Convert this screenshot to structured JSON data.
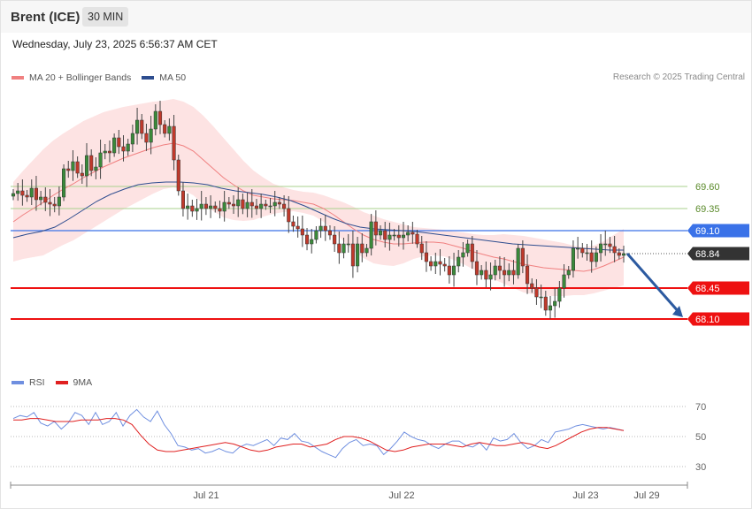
{
  "header": {
    "symbol": "Brent (ICE)",
    "timeframe": "30 MIN",
    "datetime": "Wednesday, July 23, 2025 6:56:37 AM CET"
  },
  "legend": {
    "ma20_label": "MA 20 + Bollinger Bands",
    "ma50_label": "MA 50",
    "rsi_label": "RSI",
    "ma9_label": "9MA",
    "credit": "Research © 2025 Trading Central"
  },
  "colors": {
    "ma20": "#f08080",
    "ma50": "#2e4d8f",
    "bands_fill": "#fde3e3",
    "bull": "#3a8a3a",
    "bear": "#c0392b",
    "rsi": "#6f8fe0",
    "rsi_ma": "#e02020",
    "support": "#ee1111",
    "resistance_blue": "#3a72e8",
    "resistance_green": "#a9d18e",
    "price": "#333333",
    "arrow": "#2c5aa0"
  },
  "chart_data": {
    "type": "candlestick",
    "title": "Brent (ICE)",
    "timeframe": "30 MIN",
    "price_range": [
      67.65,
      70.6
    ],
    "x_labels": [
      "Jul 21",
      "Jul 22",
      "Jul 23",
      "Jul 29"
    ],
    "levels": [
      {
        "value": 69.6,
        "label": "69.60",
        "kind": "resistance"
      },
      {
        "value": 69.35,
        "label": "69.35",
        "kind": "resistance"
      },
      {
        "value": 69.1,
        "label": "69.10",
        "kind": "resistance"
      },
      {
        "value": 68.84,
        "label": "68.84",
        "kind": "last-price"
      },
      {
        "value": 68.45,
        "label": "68.45",
        "kind": "support"
      },
      {
        "value": 68.1,
        "label": "68.10",
        "kind": "support"
      }
    ],
    "forecast_arrow": {
      "from": 68.84,
      "to": 68.1
    },
    "closes": [
      69.52,
      69.55,
      69.5,
      69.48,
      69.58,
      69.45,
      69.48,
      69.42,
      69.4,
      69.38,
      69.48,
      69.8,
      69.78,
      69.88,
      69.75,
      69.72,
      69.95,
      69.78,
      69.82,
      69.98,
      70.0,
      69.98,
      70.15,
      70.05,
      70.0,
      70.08,
      70.2,
      70.35,
      70.2,
      70.1,
      70.25,
      70.45,
      70.3,
      70.2,
      70.28,
      69.9,
      69.55,
      69.35,
      69.38,
      69.32,
      69.35,
      69.4,
      69.35,
      69.38,
      69.35,
      69.32,
      69.42,
      69.4,
      69.38,
      69.45,
      69.35,
      69.42,
      69.38,
      69.35,
      69.4,
      69.38,
      69.38,
      69.42,
      69.4,
      69.35,
      69.2,
      69.15,
      69.12,
      69.05,
      68.95,
      69.0,
      69.1,
      69.15,
      69.1,
      69.05,
      68.95,
      68.85,
      68.95,
      68.95,
      68.7,
      68.95,
      68.85,
      68.9,
      69.2,
      69.05,
      69.1,
      69.0,
      69.05,
      69.05,
      69.02,
      69.05,
      69.08,
      69.06,
      68.95,
      68.85,
      68.75,
      68.7,
      68.75,
      68.72,
      68.7,
      68.6,
      68.7,
      68.8,
      68.85,
      68.95,
      68.75,
      68.6,
      68.65,
      68.55,
      68.6,
      68.7,
      68.65,
      68.6,
      68.65,
      68.6,
      68.9,
      68.7,
      68.5,
      68.45,
      68.35,
      68.35,
      68.2,
      68.25,
      68.3,
      68.45,
      68.6,
      68.65,
      68.9,
      68.9,
      68.85,
      68.85,
      68.75,
      68.85,
      68.95,
      68.95,
      68.92,
      68.85,
      68.82,
      68.84
    ],
    "ma20": [
      69.2,
      69.28,
      69.35,
      69.42,
      69.5,
      69.57,
      69.63,
      69.7,
      69.76,
      69.82,
      69.87,
      69.92,
      69.96,
      70.0,
      70.04,
      70.07,
      70.09,
      70.06,
      70.0,
      69.9,
      69.8,
      69.7,
      69.62,
      69.55,
      69.5,
      69.48,
      69.46,
      69.45,
      69.44,
      69.42,
      69.4,
      69.35,
      69.28,
      69.2,
      69.12,
      69.05,
      69.0,
      68.97,
      68.95,
      68.95,
      68.96,
      68.97,
      68.97,
      68.96,
      68.93,
      68.9,
      68.86,
      68.83,
      68.8,
      68.78,
      68.75,
      68.72,
      68.7,
      68.68,
      68.67,
      68.66,
      68.65,
      68.64,
      68.66,
      68.7,
      68.75,
      68.8
    ],
    "ma50": [
      69.02,
      69.06,
      69.09,
      69.14,
      69.23,
      69.33,
      69.43,
      69.51,
      69.57,
      69.62,
      69.64,
      69.65,
      69.65,
      69.64,
      69.62,
      69.58,
      69.55,
      69.53,
      69.51,
      69.48,
      69.44,
      69.38,
      69.31,
      69.24,
      69.18,
      69.14,
      69.12,
      69.11,
      69.1,
      69.09,
      69.07,
      69.05,
      69.03,
      69.01,
      68.99,
      68.97,
      68.95,
      68.94,
      68.93,
      68.92,
      68.91,
      68.9,
      68.89,
      68.88,
      68.88
    ],
    "rsi": {
      "ticks": [
        70,
        50,
        30
      ],
      "range": [
        20,
        80
      ],
      "rsi_values": [
        62,
        64,
        63,
        66,
        59,
        57,
        60,
        55,
        59,
        66,
        64,
        58,
        66,
        58,
        60,
        66,
        57,
        64,
        68,
        63,
        60,
        67,
        58,
        52,
        44,
        43,
        41,
        42,
        39,
        40,
        42,
        40,
        39,
        43,
        45,
        44,
        46,
        48,
        44,
        49,
        48,
        52,
        47,
        46,
        43,
        40,
        38,
        36,
        42,
        46,
        48,
        44,
        45,
        44,
        38,
        42,
        47,
        53,
        50,
        48,
        47,
        44,
        42,
        45,
        47,
        47,
        44,
        43,
        46,
        41,
        49,
        47,
        48,
        52,
        46,
        42,
        44,
        48,
        46,
        53,
        54,
        55,
        57,
        58,
        57,
        56,
        55,
        56,
        55,
        54
      ],
      "ma9_values": [
        61,
        61,
        62,
        62,
        61,
        60,
        60,
        60,
        61,
        61,
        61,
        62,
        62,
        61,
        58,
        51,
        45,
        41,
        40,
        40,
        41,
        42,
        43,
        44,
        45,
        46,
        45,
        43,
        41,
        40,
        41,
        43,
        44,
        45,
        45,
        43,
        44,
        45,
        48,
        50,
        50,
        49,
        47,
        44,
        41,
        40,
        41,
        43,
        44,
        45,
        45,
        45,
        44,
        43,
        45,
        46,
        45,
        44,
        44,
        45,
        46,
        45,
        43,
        42,
        44,
        47,
        50,
        53,
        55,
        56,
        56,
        55,
        54
      ]
    }
  }
}
